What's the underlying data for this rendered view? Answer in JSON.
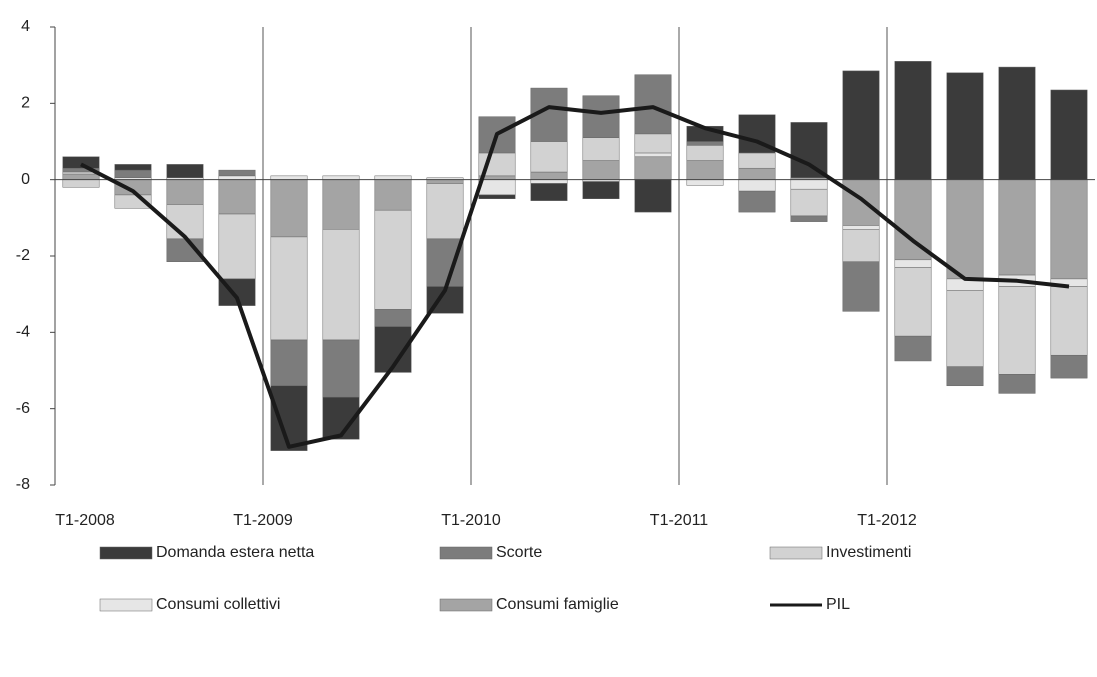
{
  "chart_data": {
    "type": "bar",
    "stacked": true,
    "categories": [
      "T1-2008",
      null,
      null,
      null,
      "T1-2009",
      null,
      null,
      null,
      "T1-2010",
      null,
      null,
      null,
      "T1-2011",
      null,
      null,
      null,
      "T1-2012",
      null,
      null,
      null
    ],
    "series": [
      {
        "name": "Domanda estera netta",
        "color": "#3b3b3b",
        "values": [
          0.3,
          0.15,
          0.35,
          -0.7,
          -1.7,
          -1.1,
          -1.2,
          -0.7,
          -0.1,
          -0.45,
          -0.45,
          -0.85,
          0.4,
          1.0,
          1.45,
          2.85,
          3.1,
          2.8,
          2.95,
          2.35
        ]
      },
      {
        "name": "Scorte",
        "color": "#7c7c7c",
        "values": [
          0.1,
          0.2,
          -0.6,
          0.15,
          -1.2,
          -1.5,
          -0.45,
          -1.25,
          0.95,
          1.4,
          1.1,
          1.55,
          0.1,
          -0.55,
          -0.15,
          -1.3,
          -0.65,
          -0.5,
          -0.5,
          -0.6
        ]
      },
      {
        "name": "Investimenti",
        "color": "#d2d2d2",
        "values": [
          -0.2,
          -0.35,
          -0.9,
          -1.7,
          -2.7,
          -2.9,
          -2.6,
          -1.45,
          0.6,
          0.8,
          0.6,
          0.5,
          0.4,
          0.4,
          -0.7,
          -0.85,
          -1.8,
          -2.0,
          -2.3,
          -1.8
        ]
      },
      {
        "name": "Consumi collettivi",
        "color": "#e6e6e6",
        "values": [
          0.05,
          0.05,
          0.05,
          0.1,
          0.1,
          0.1,
          0.1,
          0.05,
          -0.4,
          -0.1,
          -0.05,
          0.1,
          -0.15,
          -0.3,
          -0.25,
          -0.1,
          -0.2,
          -0.3,
          -0.3,
          -0.2
        ]
      },
      {
        "name": "Consumi famiglie",
        "color": "#a4a4a4",
        "values": [
          0.15,
          -0.4,
          -0.65,
          -0.9,
          -1.5,
          -1.3,
          -0.8,
          -0.1,
          0.1,
          0.2,
          0.5,
          0.6,
          0.5,
          0.3,
          0.05,
          -1.2,
          -2.1,
          -2.6,
          -2.5,
          -2.6
        ]
      },
      {
        "name": "PIL",
        "color": "#1a1a1a",
        "type": "line",
        "values": [
          0.4,
          -0.3,
          -1.5,
          -3.1,
          -7.0,
          -6.7,
          -4.9,
          -2.9,
          1.2,
          1.9,
          1.75,
          1.9,
          1.35,
          1.0,
          0.4,
          -0.5,
          -1.6,
          -2.6,
          -2.65,
          -2.8
        ]
      }
    ],
    "ylim": [
      -8,
      4
    ],
    "yticks": [
      -8,
      -6,
      -4,
      -2,
      0,
      2,
      4
    ],
    "legend": "bottom"
  }
}
